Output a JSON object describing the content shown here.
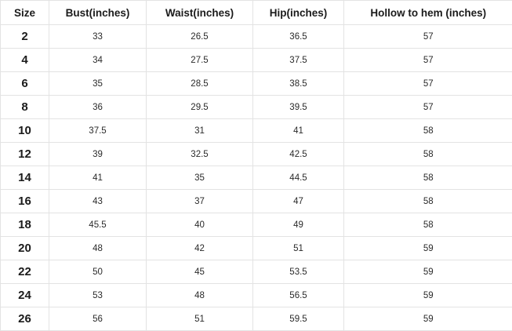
{
  "table": {
    "columns": [
      "Size",
      "Bust(inches)",
      "Waist(inches)",
      "Hip(inches)",
      "Hollow to hem (inches)"
    ],
    "rows": [
      [
        "2",
        "33",
        "26.5",
        "36.5",
        "57"
      ],
      [
        "4",
        "34",
        "27.5",
        "37.5",
        "57"
      ],
      [
        "6",
        "35",
        "28.5",
        "38.5",
        "57"
      ],
      [
        "8",
        "36",
        "29.5",
        "39.5",
        "57"
      ],
      [
        "10",
        "37.5",
        "31",
        "41",
        "58"
      ],
      [
        "12",
        "39",
        "32.5",
        "42.5",
        "58"
      ],
      [
        "14",
        "41",
        "35",
        "44.5",
        "58"
      ],
      [
        "16",
        "43",
        "37",
        "47",
        "58"
      ],
      [
        "18",
        "45.5",
        "40",
        "49",
        "58"
      ],
      [
        "20",
        "48",
        "42",
        "51",
        "59"
      ],
      [
        "22",
        "50",
        "45",
        "53.5",
        "59"
      ],
      [
        "24",
        "53",
        "48",
        "56.5",
        "59"
      ],
      [
        "26",
        "56",
        "51",
        "59.5",
        "59"
      ]
    ],
    "colors": {
      "border": "#e3e3e3",
      "header_text": "#1b1b1b",
      "cell_text": "#2a2a2a",
      "background": "#ffffff"
    }
  }
}
